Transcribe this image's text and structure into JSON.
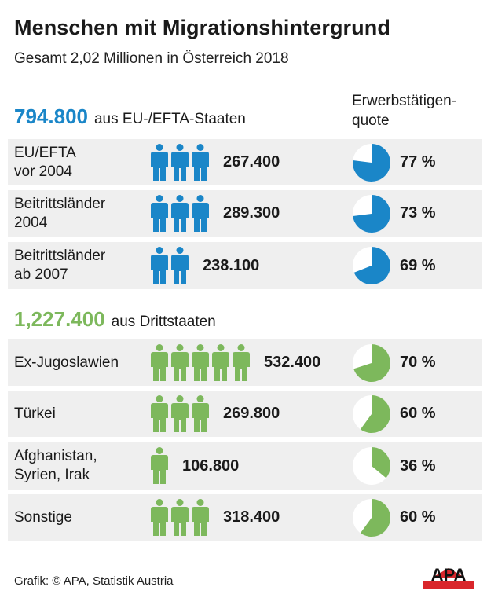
{
  "header": {
    "title": "Menschen mit Migrationshintergrund",
    "subtitle": "Gesamt 2,02 Millionen in Österreich 2018",
    "quote_label_line1": "Erwerbstätigen-",
    "quote_label_line2": "quote"
  },
  "colors": {
    "eu": "#1a86c8",
    "third": "#7db85c",
    "row_bg": "#efefef",
    "logo_red": "#d9262b"
  },
  "groups": [
    {
      "total": "794.800",
      "label": "aus EU-/EFTA-Staaten",
      "color": "#1a86c8"
    },
    {
      "total": "1,227.400",
      "label": "aus Drittstaaten",
      "color": "#7db85c"
    }
  ],
  "chart_data": {
    "type": "table",
    "title": "Menschen mit Migrationshintergrund",
    "subtitle": "Gesamt 2,02 Millionen in Österreich 2018",
    "columns": [
      "",
      "",
      "Erwerbstätigenquote"
    ],
    "rows": [
      {
        "group": 0,
        "label_line1": "EU/EFTA",
        "label_line2": "vor 2004",
        "persons": 3,
        "value": 267400,
        "value_label": "267.400",
        "quote": 77,
        "quote_label": "77 %"
      },
      {
        "group": 0,
        "label_line1": "Beitrittsländer",
        "label_line2": "2004",
        "persons": 3,
        "value": 289300,
        "value_label": "289.300",
        "quote": 73,
        "quote_label": "73 %"
      },
      {
        "group": 0,
        "label_line1": "Beitrittsländer",
        "label_line2": "ab 2007",
        "persons": 2,
        "value": 238100,
        "value_label": "238.100",
        "quote": 69,
        "quote_label": "69 %"
      },
      {
        "group": 1,
        "label_line1": "Ex-Jugoslawien",
        "label_line2": "",
        "persons": 5,
        "value": 532400,
        "value_label": "532.400",
        "quote": 70,
        "quote_label": "70 %"
      },
      {
        "group": 1,
        "label_line1": "Türkei",
        "label_line2": "",
        "persons": 3,
        "value": 269800,
        "value_label": "269.800",
        "quote": 60,
        "quote_label": "60 %"
      },
      {
        "group": 1,
        "label_line1": "Afghanistan,",
        "label_line2": "Syrien, Irak",
        "persons": 1,
        "value": 106800,
        "value_label": "106.800",
        "quote": 36,
        "quote_label": "36 %"
      },
      {
        "group": 1,
        "label_line1": "Sonstige",
        "label_line2": "",
        "persons": 3,
        "value": 318400,
        "value_label": "318.400",
        "quote": 60,
        "quote_label": "60 %"
      }
    ]
  },
  "footer": {
    "credit": "Grafik: © APA, Statistik Austria",
    "logo": "APA"
  }
}
